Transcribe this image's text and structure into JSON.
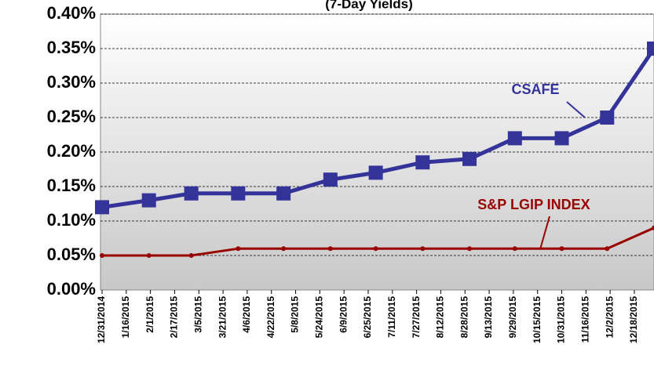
{
  "chart_data": {
    "type": "line",
    "title": "(7-Day Yields)",
    "xlim": [
      "12/31/2014",
      "12/31/2015"
    ],
    "xticks": [
      "12/31/2014",
      "1/16/2015",
      "2/1/2015",
      "2/17/2015",
      "3/5/2015",
      "3/21/2015",
      "4/6/2015",
      "4/22/2015",
      "5/8/2015",
      "5/24/2015",
      "6/9/2015",
      "6/25/2015",
      "7/11/2015",
      "7/27/2015",
      "8/12/2015",
      "8/28/2015",
      "9/13/2015",
      "9/29/2015",
      "10/15/2015",
      "10/31/2015",
      "11/16/2015",
      "12/2/2015",
      "12/18/2015"
    ],
    "x": [
      "12/31/2014",
      "1/31/2015",
      "2/28/2015",
      "3/31/2015",
      "4/30/2015",
      "5/31/2015",
      "6/30/2015",
      "7/31/2015",
      "8/31/2015",
      "9/30/2015",
      "10/31/2015",
      "11/30/2015",
      "12/31/2015"
    ],
    "ylim": [
      0,
      0.4
    ],
    "yticks": [
      {
        "value": 0,
        "label": "0.00%"
      },
      {
        "value": 0.05,
        "label": "0.05%"
      },
      {
        "value": 0.1,
        "label": "0.10%"
      },
      {
        "value": 0.15,
        "label": "0.15%"
      },
      {
        "value": 0.2,
        "label": "0.20%"
      },
      {
        "value": 0.25,
        "label": "0.25%"
      },
      {
        "value": 0.3,
        "label": "0.30%"
      },
      {
        "value": 0.35,
        "label": "0.35%"
      },
      {
        "value": 0.4,
        "label": "0.40%"
      }
    ],
    "grid": true,
    "series": [
      {
        "name": "CSAFE",
        "color": "#333399",
        "marker": "square",
        "values": [
          0.12,
          0.13,
          0.14,
          0.14,
          0.14,
          0.16,
          0.17,
          0.185,
          0.19,
          0.22,
          0.22,
          0.25,
          0.35
        ]
      },
      {
        "name": "S&P LGIP INDEX",
        "color": "#990000",
        "marker": "dot",
        "values": [
          0.05,
          0.05,
          0.05,
          0.06,
          0.06,
          0.06,
          0.06,
          0.06,
          0.06,
          0.06,
          0.06,
          0.06,
          0.09
        ]
      }
    ]
  }
}
